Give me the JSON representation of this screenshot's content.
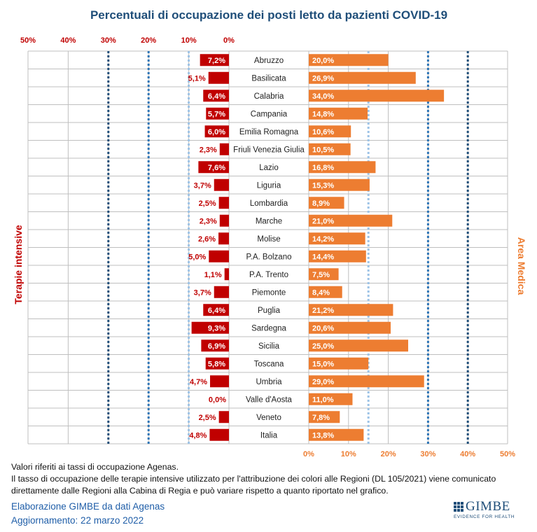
{
  "chart_data": {
    "type": "bar",
    "title": "Percentuali di occupazione dei posti letto da pazienti COVID-19",
    "left_axis_label": "Terapie intensive",
    "right_axis_label": "Area Medica",
    "left_ticks": [
      "50%",
      "40%",
      "30%",
      "20%",
      "10%",
      "0%"
    ],
    "right_ticks": [
      "0%",
      "10%",
      "20%",
      "30%",
      "40%",
      "50%"
    ],
    "xlim": [
      0,
      50
    ],
    "thresholds_left": [
      10,
      20,
      30
    ],
    "thresholds_right": [
      15,
      30,
      40
    ],
    "categories": [
      "Abruzzo",
      "Basilicata",
      "Calabria",
      "Campania",
      "Emilia Romagna",
      "Friuli Venezia Giulia",
      "Lazio",
      "Liguria",
      "Lombardia",
      "Marche",
      "Molise",
      "P.A. Bolzano",
      "P.A. Trento",
      "Piemonte",
      "Puglia",
      "Sardegna",
      "Sicilia",
      "Toscana",
      "Umbria",
      "Valle d'Aosta",
      "Veneto",
      "Italia"
    ],
    "series": [
      {
        "name": "Terapie intensive",
        "values": [
          7.2,
          5.1,
          6.4,
          5.7,
          6.0,
          2.3,
          7.6,
          3.7,
          2.5,
          2.3,
          2.6,
          5.0,
          1.1,
          3.7,
          6.4,
          9.3,
          6.9,
          5.8,
          4.7,
          0.0,
          2.5,
          4.8
        ],
        "labels": [
          "7,2%",
          "5,1%",
          "6,4%",
          "5,7%",
          "6,0%",
          "2,3%",
          "7,6%",
          "3,7%",
          "2,5%",
          "2,3%",
          "2,6%",
          "5,0%",
          "1,1%",
          "3,7%",
          "6,4%",
          "9,3%",
          "6,9%",
          "5,8%",
          "4,7%",
          "0,0%",
          "2,5%",
          "4,8%"
        ]
      },
      {
        "name": "Area Medica",
        "values": [
          20.0,
          26.9,
          34.0,
          14.8,
          10.6,
          10.5,
          16.8,
          15.3,
          8.9,
          21.0,
          14.2,
          14.4,
          7.5,
          8.4,
          21.2,
          20.6,
          25.0,
          15.0,
          29.0,
          11.0,
          7.8,
          13.8
        ],
        "labels": [
          "20,0%",
          "26,9%",
          "34,0%",
          "14,8%",
          "10,6%",
          "10,5%",
          "16,8%",
          "15,3%",
          "8,9%",
          "21,0%",
          "14,2%",
          "14,4%",
          "7,5%",
          "8,4%",
          "21,2%",
          "20,6%",
          "25,0%",
          "15,0%",
          "29,0%",
          "11,0%",
          "7,8%",
          "13,8%"
        ]
      }
    ],
    "colors": {
      "left_bar": "#c00000",
      "right_bar": "#ed7d31",
      "threshold_light": "#9dc3e6",
      "threshold_mid": "#2e75b6",
      "threshold_dark": "#1f4e79",
      "grid": "#bfbfbf",
      "title": "#1f4e79"
    }
  },
  "footer": {
    "note_1": "Valori riferiti ai tassi di occupazione Agenas.",
    "note_2": "Il tasso di occupazione delle terapie intensive utilizzato per l'attribuzione dei colori alle Regioni (DL 105/2021) viene comunicato",
    "note_3": "direttamente dalle Regioni alla Cabina di Regia e può variare rispetto a quanto riportato nel grafico.",
    "credit_1": "Elaborazione GIMBE da dati Agenas",
    "credit_2": "Aggiornamento: 22 marzo 2022"
  },
  "logo": {
    "name": "GIMBE",
    "tagline": "EVIDENCE FOR HEALTH"
  }
}
